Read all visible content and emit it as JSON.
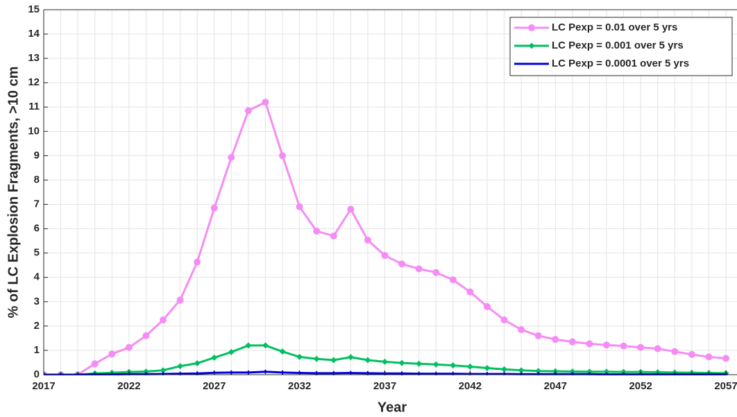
{
  "chart_data": {
    "type": "line",
    "xlabel": "Year",
    "ylabel": "% of LC Explosion Fragments, >10 cm",
    "x": [
      2017,
      2018,
      2019,
      2020,
      2021,
      2022,
      2023,
      2024,
      2025,
      2026,
      2027,
      2028,
      2029,
      2030,
      2031,
      2032,
      2033,
      2034,
      2035,
      2036,
      2037,
      2038,
      2039,
      2040,
      2041,
      2042,
      2043,
      2044,
      2045,
      2046,
      2047,
      2048,
      2049,
      2050,
      2051,
      2052,
      2053,
      2054,
      2055,
      2056,
      2057
    ],
    "series": [
      {
        "name": "LC Pexp = 0.01 over 5 yrs",
        "color": "#f58cf5",
        "marker": "circle",
        "values": [
          0,
          0,
          0,
          0.45,
          0.85,
          1.12,
          1.6,
          2.25,
          3.07,
          4.63,
          6.85,
          8.93,
          10.85,
          11.2,
          9.0,
          6.9,
          5.9,
          5.7,
          6.8,
          5.53,
          4.9,
          4.55,
          4.35,
          4.2,
          3.9,
          3.4,
          2.8,
          2.25,
          1.85,
          1.6,
          1.45,
          1.35,
          1.27,
          1.22,
          1.18,
          1.12,
          1.07,
          0.95,
          0.83,
          0.73,
          0.67
        ]
      },
      {
        "name": "LC Pexp = 0.001 over 5 yrs",
        "color": "#00c060",
        "marker": "diamond",
        "values": [
          0,
          0,
          0,
          0.05,
          0.08,
          0.11,
          0.13,
          0.18,
          0.35,
          0.47,
          0.7,
          0.93,
          1.2,
          1.2,
          0.95,
          0.73,
          0.65,
          0.6,
          0.72,
          0.6,
          0.53,
          0.48,
          0.45,
          0.42,
          0.38,
          0.33,
          0.27,
          0.22,
          0.18,
          0.15,
          0.14,
          0.13,
          0.12,
          0.12,
          0.11,
          0.11,
          0.1,
          0.09,
          0.08,
          0.07,
          0.06
        ]
      },
      {
        "name": "LC Pexp = 0.0001 over 5 yrs",
        "color": "#0000e0",
        "marker": "star",
        "values": [
          0,
          0,
          0,
          0.01,
          0.01,
          0.02,
          0.02,
          0.03,
          0.04,
          0.05,
          0.08,
          0.09,
          0.09,
          0.12,
          0.09,
          0.07,
          0.06,
          0.06,
          0.07,
          0.06,
          0.05,
          0.05,
          0.04,
          0.04,
          0.04,
          0.03,
          0.03,
          0.03,
          0.02,
          0.02,
          0.02,
          0.02,
          0.02,
          0.01,
          0.01,
          0.01,
          0.01,
          0.01,
          0.01,
          0.01,
          0.01
        ]
      }
    ],
    "xlim": [
      2017,
      2057.65
    ],
    "xticks": [
      2017,
      2022,
      2027,
      2032,
      2037,
      2042,
      2047,
      2052,
      2057
    ],
    "ylim": [
      0,
      15
    ],
    "yticks": [
      0,
      1,
      2,
      3,
      4,
      5,
      6,
      7,
      8,
      9,
      10,
      11,
      12,
      13,
      14,
      15
    ],
    "grid": true,
    "legend": "upper right"
  }
}
